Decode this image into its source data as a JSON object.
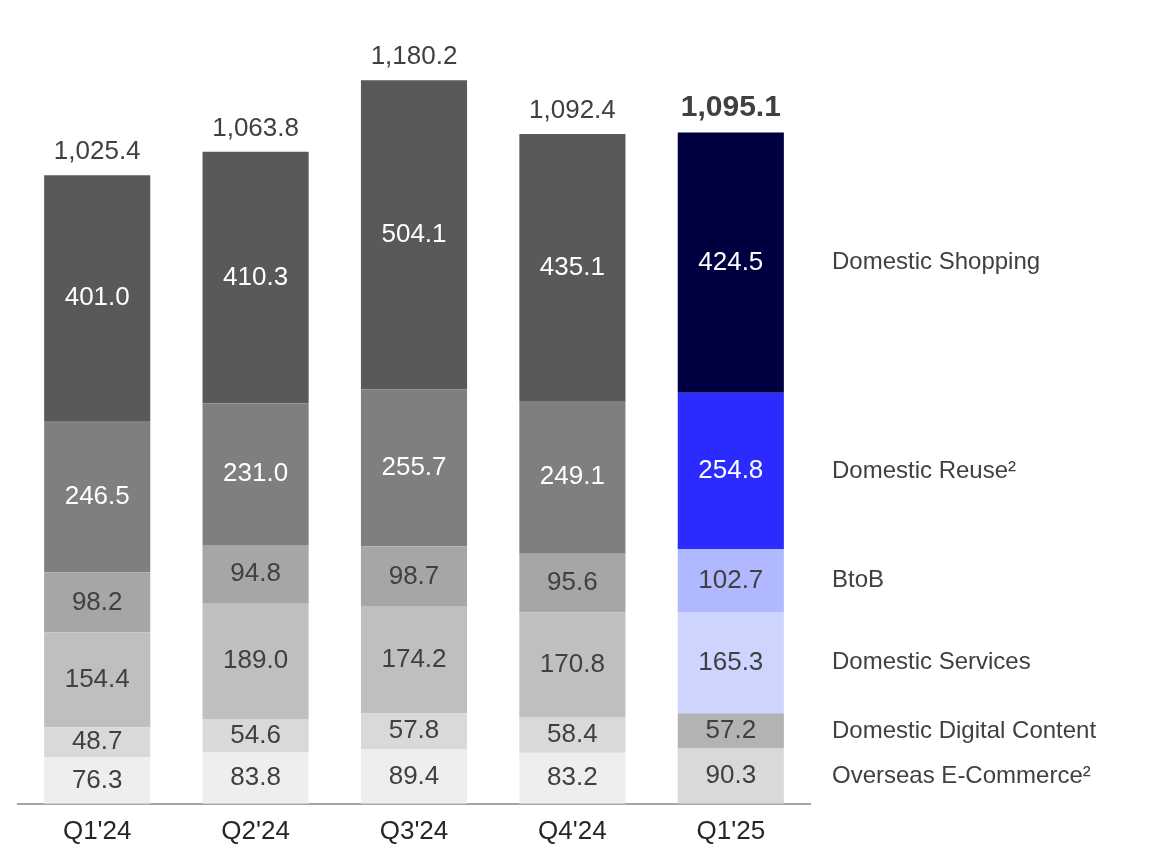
{
  "chart_data": {
    "type": "bar",
    "stacked": true,
    "categories": [
      "Q1'24",
      "Q2'24",
      "Q3'24",
      "Q4'24",
      "Q1'25"
    ],
    "series": [
      {
        "name": "Overseas E-Commerce²",
        "colors": [
          "#eeeeee",
          "#eeeeee",
          "#eeeeee",
          "#eeeeee",
          "#d9d9d9"
        ],
        "values": [
          76.3,
          83.8,
          89.4,
          83.2,
          90.3
        ],
        "value_labels": [
          "76.3",
          "83.8",
          "89.4",
          "83.2",
          "90.3"
        ]
      },
      {
        "name": "Domestic Digital Content",
        "colors": [
          "#d9d9d9",
          "#d9d9d9",
          "#d9d9d9",
          "#d9d9d9",
          "#b3b3b3"
        ],
        "values": [
          48.7,
          54.6,
          57.8,
          58.4,
          57.2
        ],
        "value_labels": [
          "48.7",
          "54.6",
          "57.8",
          "58.4",
          "57.2"
        ]
      },
      {
        "name": "Domestic Services",
        "colors": [
          "#bfbfbf",
          "#bfbfbf",
          "#bfbfbf",
          "#bfbfbf",
          "#cdd5ff"
        ],
        "values": [
          154.4,
          189.0,
          174.2,
          170.8,
          165.3
        ],
        "value_labels": [
          "154.4",
          "189.0",
          "174.2",
          "170.8",
          "165.3"
        ]
      },
      {
        "name": "BtoB",
        "colors": [
          "#a6a6a6",
          "#a6a6a6",
          "#a6a6a6",
          "#a6a6a6",
          "#b0b8ff"
        ],
        "values": [
          98.2,
          94.8,
          98.7,
          95.6,
          102.7
        ],
        "value_labels": [
          "98.2",
          "94.8",
          "98.7",
          "95.6",
          "102.7"
        ]
      },
      {
        "name": "Domestic Reuse²",
        "colors": [
          "#7f7f7f",
          "#7f7f7f",
          "#7f7f7f",
          "#7f7f7f",
          "#2b2bff"
        ],
        "values": [
          246.5,
          231.0,
          255.7,
          249.1,
          254.8
        ],
        "value_labels": [
          "246.5",
          "231.0",
          "255.7",
          "249.1",
          "254.8"
        ]
      },
      {
        "name": "Domestic Shopping",
        "colors": [
          "#595959",
          "#595959",
          "#595959",
          "#595959",
          "#000040"
        ],
        "values": [
          401.0,
          410.3,
          504.1,
          435.1,
          424.5
        ],
        "value_labels": [
          "401.0",
          "410.3",
          "504.1",
          "435.1",
          "424.5"
        ]
      }
    ],
    "totals": [
      "1,025.4",
      "1,063.8",
      "1,180.2",
      "1,092.4",
      "1,095.1"
    ],
    "legend": "right",
    "grid": false
  }
}
